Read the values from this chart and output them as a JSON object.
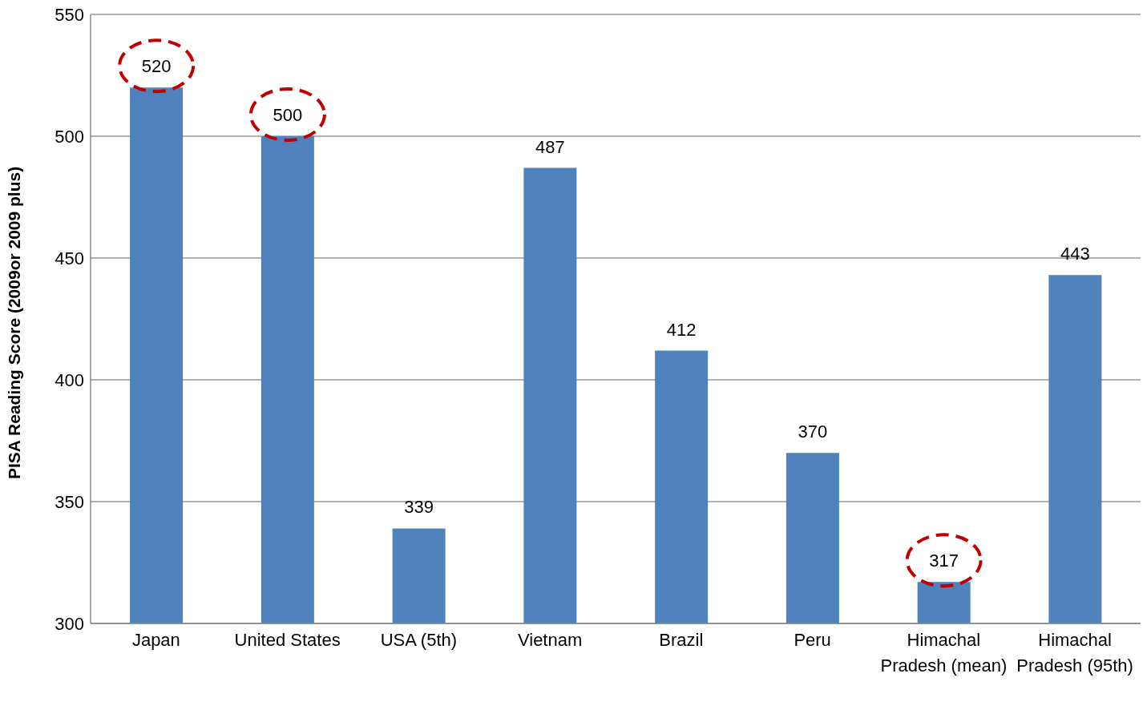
{
  "chart_data": {
    "type": "bar",
    "ylabel": "PISA Reading Score (2009or 2009 plus)",
    "categories": [
      "Japan",
      "United States",
      "USA (5th)",
      "Vietnam",
      "Brazil",
      "Peru",
      "Himachal Pradesh (mean)",
      "Himachal Pradesh (95th)"
    ],
    "values": [
      520,
      500,
      339,
      487,
      412,
      370,
      317,
      443
    ],
    "color": "#4f81bd",
    "ylim": [
      300,
      550
    ],
    "yticks": [
      300,
      350,
      400,
      450,
      500,
      550
    ],
    "grid": "y",
    "data_labels": true
  }
}
